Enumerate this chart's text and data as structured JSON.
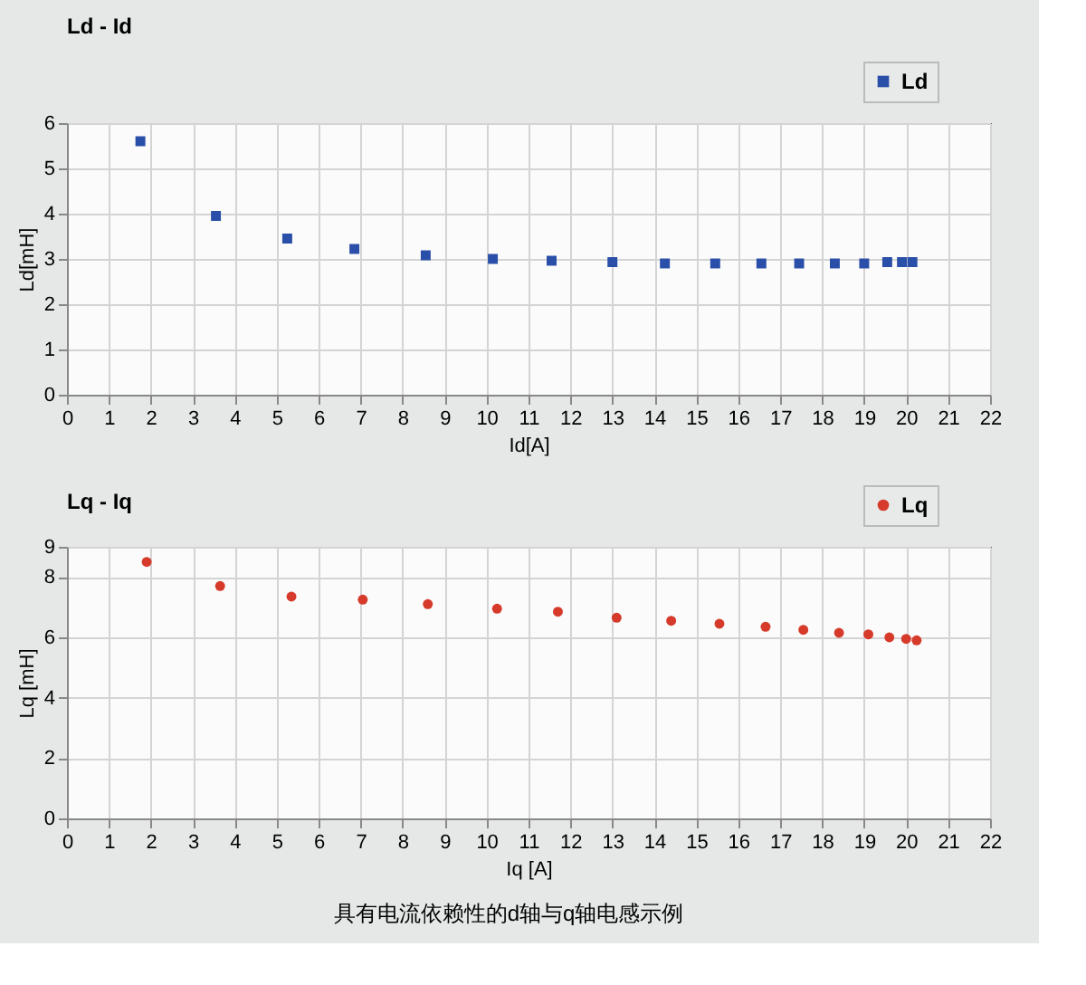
{
  "chart_data": [
    {
      "type": "scatter",
      "title": "Ld - Id",
      "xlabel": "Id[A]",
      "ylabel": "Ld[mH]",
      "marker": "square",
      "legend": "top right",
      "grid": true,
      "xlim": [
        0,
        22
      ],
      "xticks": [
        0,
        1,
        2,
        3,
        4,
        5,
        6,
        7,
        8,
        9,
        10,
        11,
        12,
        13,
        14,
        15,
        16,
        17,
        18,
        19,
        20,
        21,
        22
      ],
      "ylim": [
        0,
        6
      ],
      "yticks": [
        0,
        1,
        2,
        3,
        4,
        5,
        6
      ],
      "series": [
        {
          "name": "Ld",
          "color": "#2a4fa8",
          "x": [
            1.75,
            3.55,
            5.25,
            6.85,
            8.55,
            10.15,
            11.55,
            13.0,
            14.25,
            15.45,
            16.55,
            17.45,
            18.3,
            19.0,
            19.55,
            19.9,
            20.15
          ],
          "values": [
            5.6,
            3.95,
            3.45,
            3.22,
            3.08,
            3.0,
            2.96,
            2.93,
            2.9,
            2.9,
            2.9,
            2.9,
            2.9,
            2.9,
            2.93,
            2.93,
            2.93
          ]
        }
      ]
    },
    {
      "type": "scatter",
      "title": "Lq - Iq",
      "xlabel": "Iq [A]",
      "ylabel": "Lq [mH]",
      "marker": "circle",
      "legend": "top right",
      "grid": true,
      "xlim": [
        0,
        22
      ],
      "xticks": [
        0,
        1,
        2,
        3,
        4,
        5,
        6,
        7,
        8,
        9,
        10,
        11,
        12,
        13,
        14,
        15,
        16,
        17,
        18,
        19,
        20,
        21,
        22
      ],
      "ylim": [
        0,
        9
      ],
      "yticks": [
        0,
        2,
        4,
        6,
        8,
        9
      ],
      "annotations": [
        "具有电流依赖性的d轴与q轴电感示例"
      ],
      "series": [
        {
          "name": "Lq",
          "color": "#d63a2a",
          "x": [
            1.9,
            3.65,
            5.35,
            7.05,
            8.6,
            10.25,
            11.7,
            13.1,
            14.4,
            15.55,
            16.65,
            17.55,
            18.4,
            19.1,
            19.6,
            20.0,
            20.25
          ],
          "values": [
            8.5,
            7.7,
            7.35,
            7.25,
            7.1,
            6.95,
            6.85,
            6.65,
            6.55,
            6.45,
            6.35,
            6.25,
            6.15,
            6.1,
            6.0,
            5.95,
            5.9
          ]
        }
      ]
    }
  ]
}
